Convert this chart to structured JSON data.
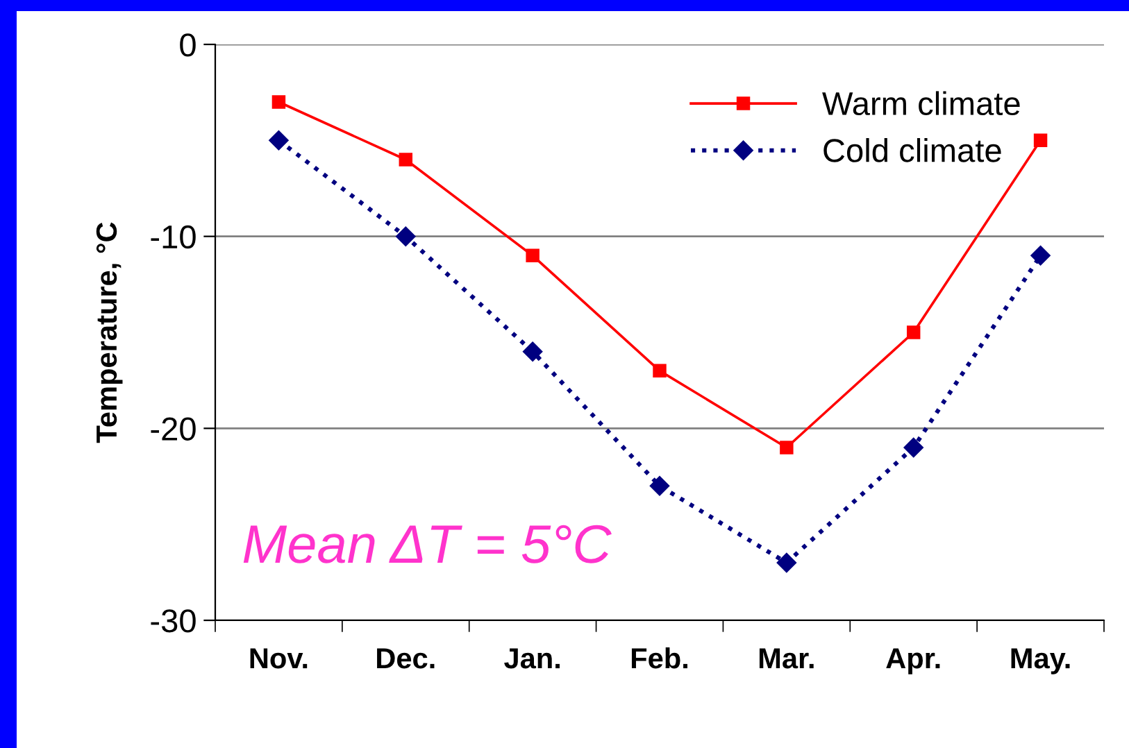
{
  "chart_data": {
    "type": "line",
    "ylabel": "Temperature, °C",
    "categories": [
      "Nov.",
      "Dec.",
      "Jan.",
      "Feb.",
      "Mar.",
      "Apr.",
      "May."
    ],
    "series": [
      {
        "name": "Warm climate",
        "color": "#ff0000",
        "values": [
          -3,
          -6,
          -11,
          -17,
          -21,
          -15,
          -5
        ],
        "marker": "square",
        "line_style": "solid"
      },
      {
        "name": "Cold climate",
        "color": "#000080",
        "values": [
          -5,
          -10,
          -16,
          -23,
          -27,
          -21,
          -11
        ],
        "marker": "diamond",
        "line_style": "dotted"
      }
    ],
    "ylim": [
      -30,
      0
    ],
    "yticks": [
      -30,
      -20,
      -10,
      0
    ],
    "grid": "y",
    "legend": "top right",
    "annotations": [
      "Mean ΔT = 5°C"
    ]
  }
}
